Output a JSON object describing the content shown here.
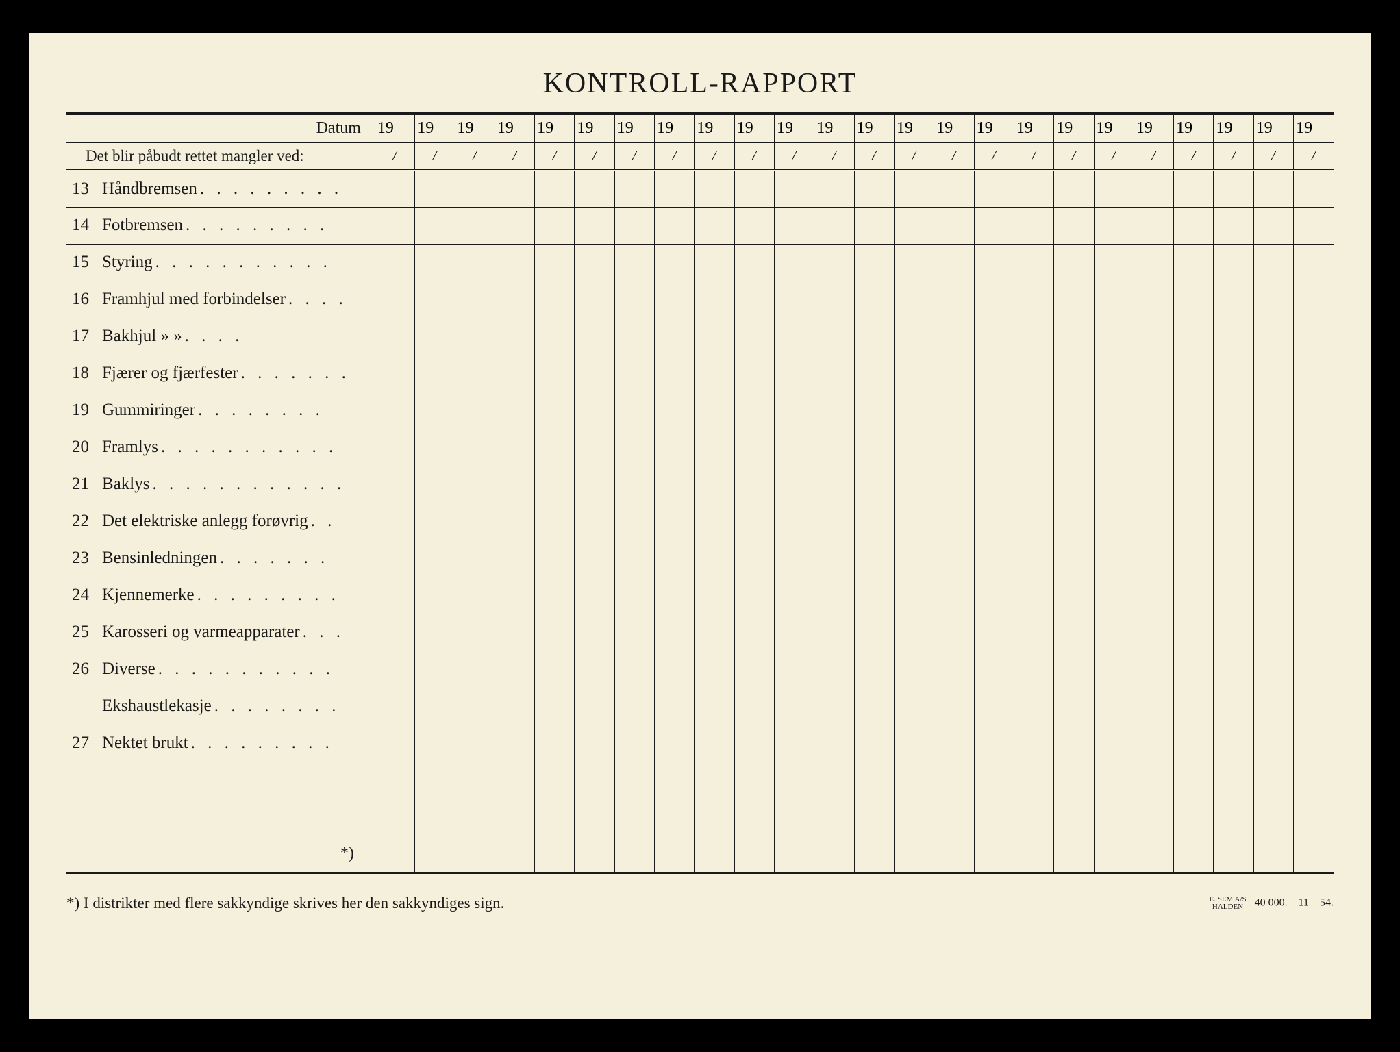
{
  "title": "KONTROLL-RAPPORT",
  "header": {
    "datum_label": "Datum",
    "subheader": "Det blir påbudt rettet mangler ved:",
    "year_prefix": "19",
    "slash": "/",
    "column_count": 24
  },
  "rows": [
    {
      "num": "13",
      "text": "Håndbremsen",
      "dots": ". . . . . . . . ."
    },
    {
      "num": "14",
      "text": "Fotbremsen",
      "dots": " . . . . . . . . ."
    },
    {
      "num": "15",
      "text": "Styring",
      "dots": " . . . . . . . . . . ."
    },
    {
      "num": "16",
      "text": "Framhjul med forbindelser",
      "dots": ". . . ."
    },
    {
      "num": "17",
      "text": "Bakhjul     »        »",
      "dots": "     . . . ."
    },
    {
      "num": "18",
      "text": "Fjærer og fjærfester",
      "dots": ". . . . . . ."
    },
    {
      "num": "19",
      "text": "Gummiringer",
      "dots": " . . . . . . . ."
    },
    {
      "num": "20",
      "text": "Framlys",
      "dots": ". . . . . . . . . . ."
    },
    {
      "num": "21",
      "text": "Baklys",
      "dots": ". . . . . . . . . . . ."
    },
    {
      "num": "22",
      "text": "Det elektriske anlegg forøvrig",
      "dots": " . ."
    },
    {
      "num": "23",
      "text": "Bensinledningen",
      "dots": " . . . . . . ."
    },
    {
      "num": "24",
      "text": "Kjennemerke",
      "dots": ". . . . . . . . ."
    },
    {
      "num": "25",
      "text": "Karosseri og varmeapparater",
      "dots": ". . ."
    },
    {
      "num": "26",
      "text": "Diverse",
      "dots": " . . . . . . . . . . ."
    },
    {
      "num": "",
      "text": "Ekshaustlekasje",
      "dots": ". . . . . . . ."
    },
    {
      "num": "27",
      "text": "Nektet brukt",
      "dots": ". . . . . . . . ."
    },
    {
      "num": "",
      "text": "",
      "dots": ""
    },
    {
      "num": "",
      "text": "",
      "dots": ""
    }
  ],
  "asterisk_row": "*)",
  "footnote": "*)   I distrikter med flere sakkyndige skrives her den sakkyndiges sign.",
  "printer": {
    "name_line1": "E. SEM A/S",
    "name_line2": "HALDEN",
    "qty": "40 000.",
    "code": "11—54."
  },
  "colors": {
    "paper": "#f5f0dc",
    "ink": "#1a1a1a",
    "background": "#000000"
  }
}
